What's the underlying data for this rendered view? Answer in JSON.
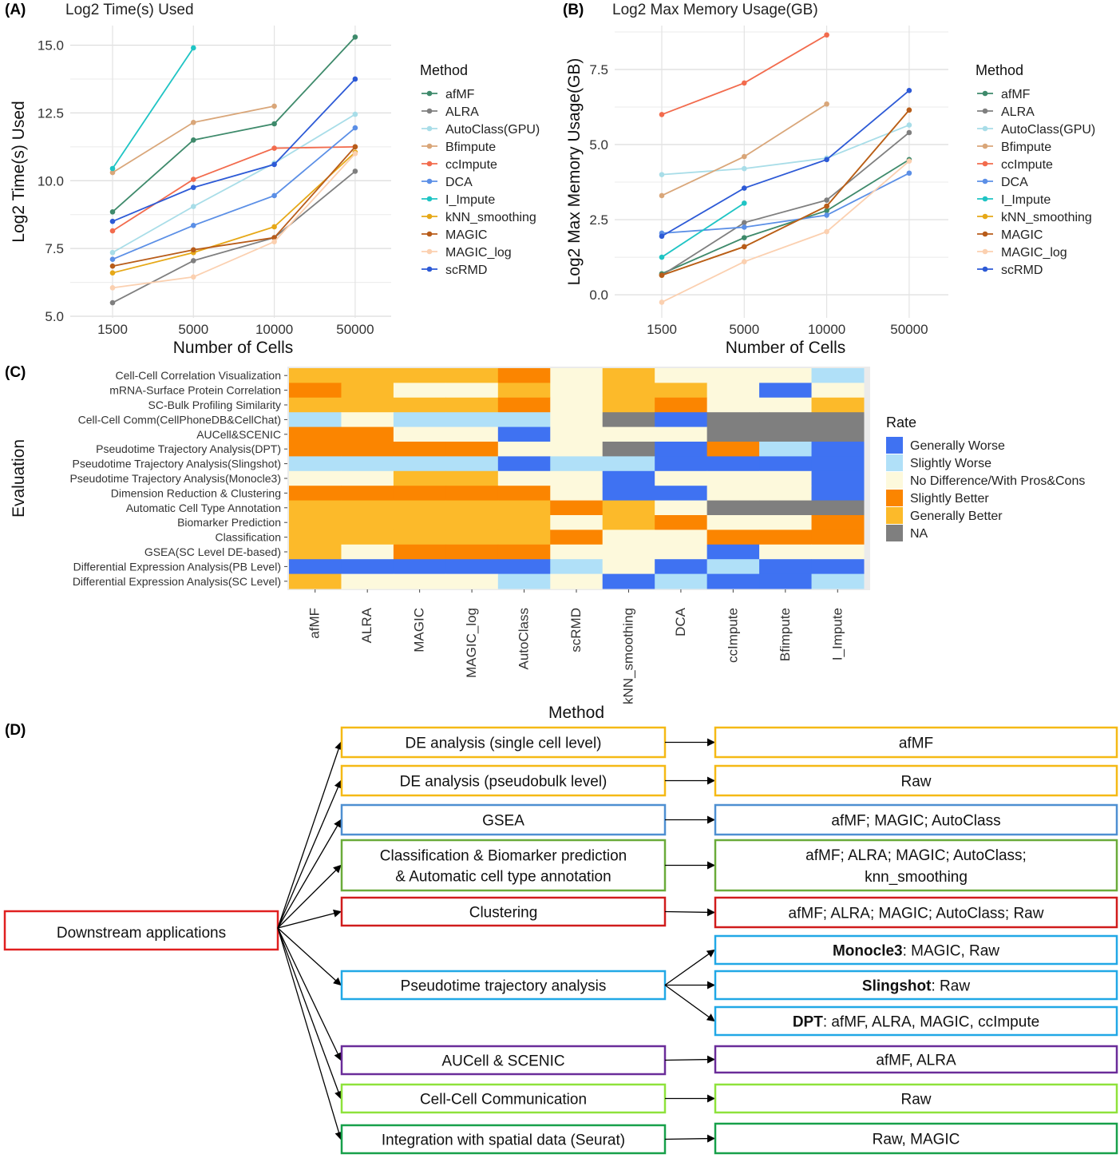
{
  "panel_labels": {
    "a": "(A)",
    "b": "(B)",
    "c": "(C)",
    "d": "(D)"
  },
  "chart_data": [
    {
      "type": "line",
      "title": "Log2 Time(s) Used",
      "xlabel": "Number of Cells",
      "ylabel": "Log2 Time(s) Used",
      "categories": [
        "1500",
        "5000",
        "10000",
        "50000"
      ],
      "ylim": [
        5.0,
        15.9
      ],
      "yticks": [
        5.0,
        7.5,
        10.0,
        12.5,
        15.0
      ],
      "ytick_labels": [
        "5.0",
        "7.5",
        "10.0",
        "12.5",
        "15.0"
      ],
      "grid": true,
      "legend_title": "Method",
      "legend_position": "right",
      "series": [
        {
          "name": "afMF",
          "color": "#3e8a6b",
          "values": [
            8.85,
            11.5,
            12.1,
            15.3
          ]
        },
        {
          "name": "ALRA",
          "color": "#7f7f7f",
          "values": [
            5.5,
            7.05,
            7.9,
            10.35
          ]
        },
        {
          "name": "AutoClass(GPU)",
          "color": "#a8dde8",
          "values": [
            7.35,
            9.05,
            10.65,
            12.45
          ]
        },
        {
          "name": "Bfimpute",
          "color": "#d9a679",
          "values": [
            10.3,
            12.15,
            12.75,
            null
          ]
        },
        {
          "name": "ccImpute",
          "color": "#f26b4d",
          "values": [
            8.15,
            10.05,
            11.2,
            11.25
          ]
        },
        {
          "name": "DCA",
          "color": "#5b8fe6",
          "values": [
            7.1,
            8.35,
            9.45,
            11.95
          ]
        },
        {
          "name": "I_Impute",
          "color": "#1fc4c4",
          "values": [
            10.45,
            14.9,
            null,
            null
          ]
        },
        {
          "name": "kNN_smoothing",
          "color": "#e6a817",
          "values": [
            6.6,
            7.35,
            8.3,
            11.05
          ]
        },
        {
          "name": "MAGIC",
          "color": "#b85c1a",
          "values": [
            6.85,
            7.45,
            7.9,
            11.25
          ]
        },
        {
          "name": "MAGIC_log",
          "color": "#fbd0b0",
          "values": [
            6.05,
            6.45,
            7.75,
            11.0
          ]
        },
        {
          "name": "scRMD",
          "color": "#2d5ad6",
          "values": [
            8.5,
            9.75,
            10.6,
            13.75
          ]
        }
      ]
    },
    {
      "type": "line",
      "title": "Log2 Max Memory Usage(GB)",
      "xlabel": "Number of Cells",
      "ylabel": "Log2 Max Memory Usage(GB)",
      "categories": [
        "1500",
        "5000",
        "10000",
        "50000"
      ],
      "ylim": [
        -0.45,
        8.75
      ],
      "yticks": [
        0.0,
        2.5,
        5.0,
        7.5
      ],
      "ytick_labels": [
        "0.0",
        "2.5",
        "5.0",
        "7.5"
      ],
      "grid": true,
      "legend_title": "Method",
      "legend_position": "right",
      "series": [
        {
          "name": "afMF",
          "color": "#3e8a6b",
          "values": [
            0.7,
            1.9,
            2.8,
            4.5
          ]
        },
        {
          "name": "ALRA",
          "color": "#7f7f7f",
          "values": [
            0.65,
            2.4,
            3.15,
            5.4
          ]
        },
        {
          "name": "AutoClass(GPU)",
          "color": "#a8dde8",
          "values": [
            4.0,
            4.2,
            4.55,
            5.65
          ]
        },
        {
          "name": "Bfimpute",
          "color": "#d9a679",
          "values": [
            3.3,
            4.6,
            6.35,
            null
          ]
        },
        {
          "name": "ccImpute",
          "color": "#f26b4d",
          "values": [
            6.0,
            7.05,
            8.65,
            null
          ]
        },
        {
          "name": "DCA",
          "color": "#5b8fe6",
          "values": [
            2.05,
            2.25,
            2.65,
            4.05
          ]
        },
        {
          "name": "I_Impute",
          "color": "#1fc4c4",
          "values": [
            1.25,
            3.05,
            null,
            null
          ]
        },
        {
          "name": "kNN_smoothing",
          "color": "#e6a817",
          "values": [
            0.65,
            1.6,
            2.95,
            6.15
          ]
        },
        {
          "name": "MAGIC",
          "color": "#b85c1a",
          "values": [
            0.65,
            1.6,
            2.95,
            6.15
          ]
        },
        {
          "name": "MAGIC_log",
          "color": "#fbd0b0",
          "values": [
            -0.25,
            1.1,
            2.1,
            4.45
          ]
        },
        {
          "name": "scRMD",
          "color": "#2d5ad6",
          "values": [
            1.95,
            3.55,
            4.5,
            6.8
          ]
        }
      ]
    },
    {
      "type": "heatmap",
      "xlabel": "Method",
      "ylabel": "Evaluation",
      "x": [
        "afMF",
        "ALRA",
        "MAGIC",
        "MAGIC_log",
        "AutoClass",
        "scRMD",
        "kNN_smoothing",
        "DCA",
        "ccImpute",
        "Bfimpute",
        "I_Impute"
      ],
      "y": [
        "Cell-Cell Correlation Visualization",
        "mRNA-Surface Protein Correlation",
        "SC-Bulk Profiling Similarity",
        "Cell-Cell Comm(CellPhoneDB&CellChat)",
        "AUCell&SCENIC",
        "Pseudotime Trajectory Analysis(DPT)",
        "Pseudotime Trajectory Analysis(Slingshot)",
        "Pseudotime Trajectory Analysis(Monocle3)",
        "Dimension Reduction & Clustering",
        "Automatic Cell Type Annotation",
        "Biomarker Prediction",
        "Classification",
        "GSEA(SC Level DE-based)",
        "Differential Expression Analysis(PB Level)",
        "Differential Expression Analysis(SC Level)"
      ],
      "legend_title": "Rate",
      "legend_position": "right",
      "levels": [
        {
          "key": "GW",
          "label": "Generally Worse",
          "color": "#3f72f2"
        },
        {
          "key": "SW",
          "label": "Slightly Worse",
          "color": "#b0e0f8"
        },
        {
          "key": "ND",
          "label": "No Difference/With Pros&Cons",
          "color": "#fdf9dc"
        },
        {
          "key": "SB",
          "label": "Slightly Better",
          "color": "#fb8500"
        },
        {
          "key": "GB",
          "label": "Generally Better",
          "color": "#fcba2a"
        },
        {
          "key": "NA",
          "label": "NA",
          "color": "#7f7f7f"
        }
      ],
      "values": [
        [
          "GB",
          "GB",
          "GB",
          "GB",
          "SB",
          "ND",
          "GB",
          "ND",
          "ND",
          "ND",
          "SW"
        ],
        [
          "SB",
          "GB",
          "ND",
          "ND",
          "GB",
          "ND",
          "GB",
          "GB",
          "ND",
          "GW",
          "ND"
        ],
        [
          "GB",
          "GB",
          "GB",
          "GB",
          "SB",
          "ND",
          "GB",
          "SB",
          "ND",
          "ND",
          "GB"
        ],
        [
          "SW",
          "ND",
          "SW",
          "SW",
          "SW",
          "ND",
          "NA",
          "GW",
          "NA",
          "NA",
          "NA"
        ],
        [
          "SB",
          "SB",
          "ND",
          "ND",
          "GW",
          "ND",
          "ND",
          "ND",
          "NA",
          "NA",
          "NA"
        ],
        [
          "SB",
          "SB",
          "SB",
          "SB",
          "ND",
          "ND",
          "NA",
          "GW",
          "SB",
          "SW",
          "GW"
        ],
        [
          "SW",
          "SW",
          "SW",
          "SW",
          "GW",
          "SW",
          "SW",
          "GW",
          "GW",
          "GW",
          "GW"
        ],
        [
          "ND",
          "ND",
          "GB",
          "GB",
          "ND",
          "ND",
          "GW",
          "ND",
          "ND",
          "ND",
          "GW"
        ],
        [
          "SB",
          "SB",
          "SB",
          "SB",
          "SB",
          "ND",
          "GW",
          "GW",
          "ND",
          "ND",
          "GW"
        ],
        [
          "GB",
          "GB",
          "GB",
          "GB",
          "GB",
          "SB",
          "GB",
          "ND",
          "NA",
          "NA",
          "NA"
        ],
        [
          "GB",
          "GB",
          "GB",
          "GB",
          "GB",
          "ND",
          "GB",
          "SB",
          "ND",
          "ND",
          "SB"
        ],
        [
          "GB",
          "GB",
          "GB",
          "GB",
          "GB",
          "SB",
          "ND",
          "ND",
          "SB",
          "SB",
          "SB"
        ],
        [
          "GB",
          "ND",
          "SB",
          "SB",
          "SB",
          "ND",
          "ND",
          "ND",
          "GW",
          "ND",
          "ND"
        ],
        [
          "GW",
          "GW",
          "GW",
          "GW",
          "GW",
          "SW",
          "ND",
          "GW",
          "SW",
          "GW",
          "GW"
        ],
        [
          "GB",
          "ND",
          "ND",
          "ND",
          "SW",
          "ND",
          "GW",
          "SW",
          "GW",
          "GW",
          "SW"
        ]
      ]
    }
  ],
  "flow": {
    "root": "Downstream applications",
    "rows": [
      {
        "app": "DE analysis (single cell level)",
        "results": [
          {
            "bold": "",
            "text": "afMF"
          }
        ],
        "color": "#f5b915"
      },
      {
        "app": "DE analysis (pseudobulk level)",
        "results": [
          {
            "bold": "",
            "text": "Raw"
          }
        ],
        "color": "#f5b915"
      },
      {
        "app": "GSEA",
        "results": [
          {
            "bold": "",
            "text": "afMF; MAGIC; AutoClass"
          }
        ],
        "color": "#4e8fd1"
      },
      {
        "app": "Classification & Biomarker prediction\n& Automatic cell type annotation",
        "results": [
          {
            "bold": "",
            "text": "afMF; ALRA; MAGIC; AutoClass;\nknn_smoothing"
          }
        ],
        "color": "#6aab3a"
      },
      {
        "app": "Clustering",
        "results": [
          {
            "bold": "",
            "text": "afMF; ALRA; MAGIC; AutoClass; Raw"
          }
        ],
        "color": "#d01c1c"
      },
      {
        "app": "Pseudotime trajectory analysis",
        "results": [
          {
            "bold": "Monocle3",
            "text": ": MAGIC, Raw"
          },
          {
            "bold": "Slingshot",
            "text": ": Raw"
          },
          {
            "bold": "DPT",
            "text": ": afMF, ALRA, MAGIC, ccImpute"
          }
        ],
        "color": "#21a8e6"
      },
      {
        "app": "AUCell & SCENIC",
        "results": [
          {
            "bold": "",
            "text": "afMF, ALRA"
          }
        ],
        "color": "#6a2c99"
      },
      {
        "app": "Cell-Cell Communication",
        "results": [
          {
            "bold": "",
            "text": "Raw"
          }
        ],
        "color": "#8ee23b"
      },
      {
        "app": "Integration with spatial data (Seurat)",
        "results": [
          {
            "bold": "",
            "text": "Raw, MAGIC"
          }
        ],
        "color": "#17a04a"
      }
    ]
  }
}
